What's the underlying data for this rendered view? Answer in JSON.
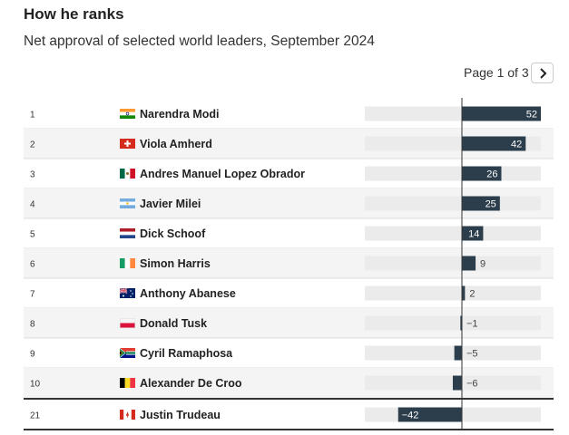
{
  "header": {
    "title": "How he ranks",
    "subtitle": "Net approval of selected world leaders, September 2024"
  },
  "pagination": {
    "label": "Page 1 of 3",
    "next_icon": "chevron-right-icon"
  },
  "colors": {
    "bar": "#2c3e4c",
    "track": "#ebebeb",
    "alt_row": "#f4f4f4",
    "divider": "#dddddd",
    "axis": "#333333"
  },
  "chart_data": {
    "type": "bar",
    "orientation": "horizontal",
    "title": "How he ranks",
    "subtitle": "Net approval of selected world leaders, September 2024",
    "xlim": [
      -52,
      52
    ],
    "rows": [
      {
        "rank": "1",
        "name": "Narendra Modi",
        "flag": "india",
        "value": 52,
        "label": "52"
      },
      {
        "rank": "2",
        "name": "Viola Amherd",
        "flag": "switzerland",
        "value": 42,
        "label": "42"
      },
      {
        "rank": "3",
        "name": "Andres Manuel Lopez Obrador",
        "flag": "mexico",
        "value": 26,
        "label": "26"
      },
      {
        "rank": "4",
        "name": "Javier Milei",
        "flag": "argentina",
        "value": 25,
        "label": "25"
      },
      {
        "rank": "5",
        "name": "Dick Schoof",
        "flag": "netherlands",
        "value": 14,
        "label": "14"
      },
      {
        "rank": "6",
        "name": "Simon Harris",
        "flag": "ireland",
        "value": 9,
        "label": "9"
      },
      {
        "rank": "7",
        "name": "Anthony Abanese",
        "flag": "australia",
        "value": 2,
        "label": "2"
      },
      {
        "rank": "8",
        "name": "Donald Tusk",
        "flag": "poland",
        "value": -1,
        "label": "−1"
      },
      {
        "rank": "9",
        "name": "Cyril Ramaphosa",
        "flag": "south-africa",
        "value": -5,
        "label": "−5"
      },
      {
        "rank": "10",
        "name": "Alexander De Croo",
        "flag": "belgium",
        "value": -6,
        "label": "−6"
      },
      {
        "rank": "21",
        "name": "Justin Trudeau",
        "flag": "canada",
        "value": -42,
        "label": "−42",
        "highlight": true
      }
    ]
  }
}
